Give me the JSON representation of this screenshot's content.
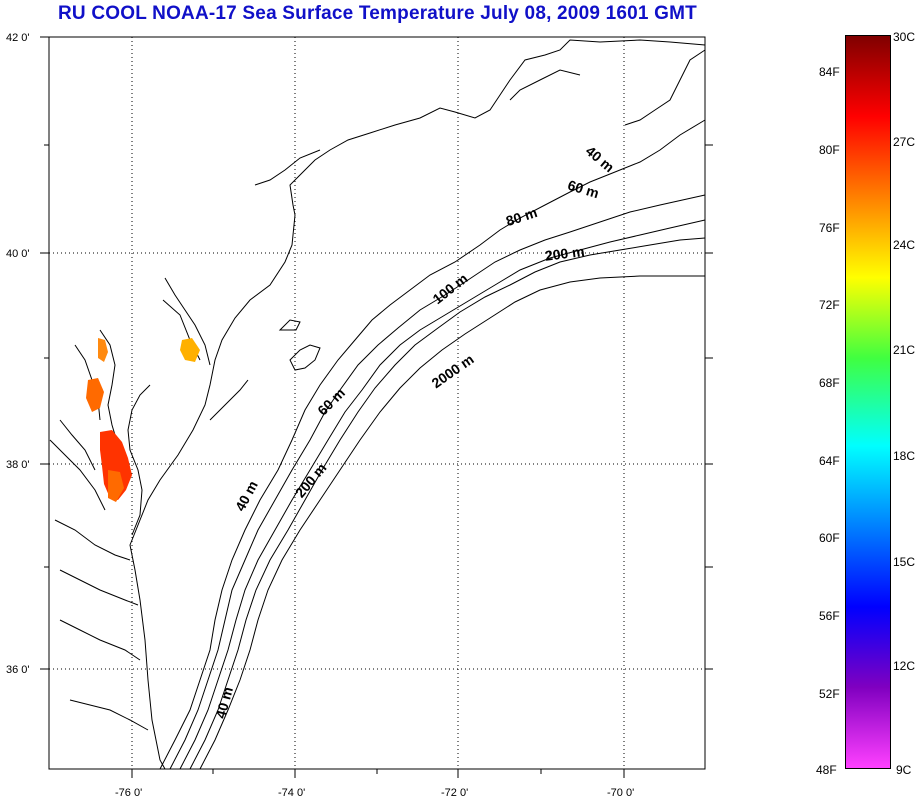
{
  "title": "RU COOL  NOAA-17 Sea Surface Temperature July 08, 2009 1601 GMT",
  "lat_labels": [
    "42 0'",
    "40 0'",
    "38 0'",
    "36 0'"
  ],
  "lon_labels": [
    "-76 0'",
    "-74 0'",
    "-72 0'",
    "-70 0'"
  ],
  "depth_labels": [
    "40 m",
    "60 m",
    "80 m",
    "200 m",
    "100 m",
    "2000 m",
    "60 m",
    "200 m",
    "40 m",
    "40 m"
  ],
  "colorbar": {
    "fahrenheit": [
      "84F",
      "80F",
      "76F",
      "72F",
      "68F",
      "64F",
      "60F",
      "56F",
      "52F",
      "48F"
    ],
    "celsius": [
      "30C",
      "27C",
      "24C",
      "21C",
      "18C",
      "15C",
      "12C",
      "9C"
    ],
    "colors": [
      "#800000",
      "#ff0000",
      "#ff8000",
      "#ffff00",
      "#40ff40",
      "#00ffff",
      "#0080ff",
      "#0000ff",
      "#8000c0",
      "#ff40ff"
    ]
  },
  "sst_colors": [
    "#ff6a00",
    "#ff3300",
    "#ffb000",
    "#ff8a10"
  ]
}
